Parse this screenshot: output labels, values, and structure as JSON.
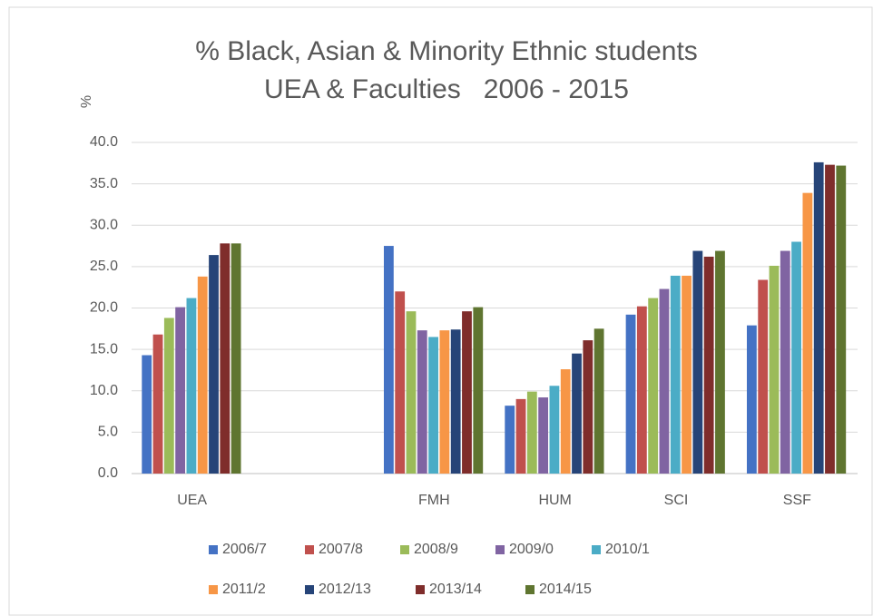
{
  "chart_data": {
    "type": "bar",
    "title": "% Black, Asian & Minority Ethnic students",
    "subtitle": "UEA & Faculties   2006 - 2015",
    "y_label": "%",
    "categories": [
      "UEA",
      null,
      "FMH",
      "HUM",
      "SCI",
      "SSF"
    ],
    "series": [
      {
        "name": "2006/7",
        "color": "#4472c4",
        "values": [
          14.3,
          null,
          27.5,
          8.2,
          19.2,
          17.9
        ]
      },
      {
        "name": "2007/8",
        "color": "#c0504d",
        "values": [
          16.8,
          null,
          22.0,
          9.0,
          20.2,
          23.4
        ]
      },
      {
        "name": "2008/9",
        "color": "#9bbb59",
        "values": [
          18.8,
          null,
          19.6,
          9.9,
          21.2,
          25.1
        ]
      },
      {
        "name": "2009/0",
        "color": "#8064a2",
        "values": [
          20.1,
          null,
          17.3,
          9.2,
          22.3,
          26.9
        ]
      },
      {
        "name": "2010/1",
        "color": "#4bacc6",
        "values": [
          21.2,
          null,
          16.5,
          10.6,
          23.9,
          28.0
        ]
      },
      {
        "name": "2011/2",
        "color": "#f79646",
        "values": [
          23.8,
          null,
          17.3,
          12.6,
          23.9,
          33.9
        ]
      },
      {
        "name": "2012/13",
        "color": "#264478",
        "values": [
          26.4,
          null,
          17.4,
          14.5,
          26.9,
          37.6
        ]
      },
      {
        "name": "2013/14",
        "color": "#7f2d2b",
        "values": [
          27.8,
          null,
          19.6,
          16.1,
          26.2,
          37.3
        ]
      },
      {
        "name": "2014/15",
        "color": "#5f7530",
        "values": [
          27.8,
          null,
          20.1,
          17.5,
          26.9,
          37.2
        ]
      }
    ],
    "ylim": [
      0,
      40
    ],
    "yticks": [
      {
        "value": 0,
        "label": "0.0"
      },
      {
        "value": 5,
        "label": "5.0"
      },
      {
        "value": 10,
        "label": "10.0"
      },
      {
        "value": 15,
        "label": "15.0"
      },
      {
        "value": 20,
        "label": "20.0"
      },
      {
        "value": 25,
        "label": "25.0"
      },
      {
        "value": 30,
        "label": "30.0"
      },
      {
        "value": 35,
        "label": "35.0"
      },
      {
        "value": 40,
        "label": "40.0"
      }
    ],
    "grid": true
  }
}
